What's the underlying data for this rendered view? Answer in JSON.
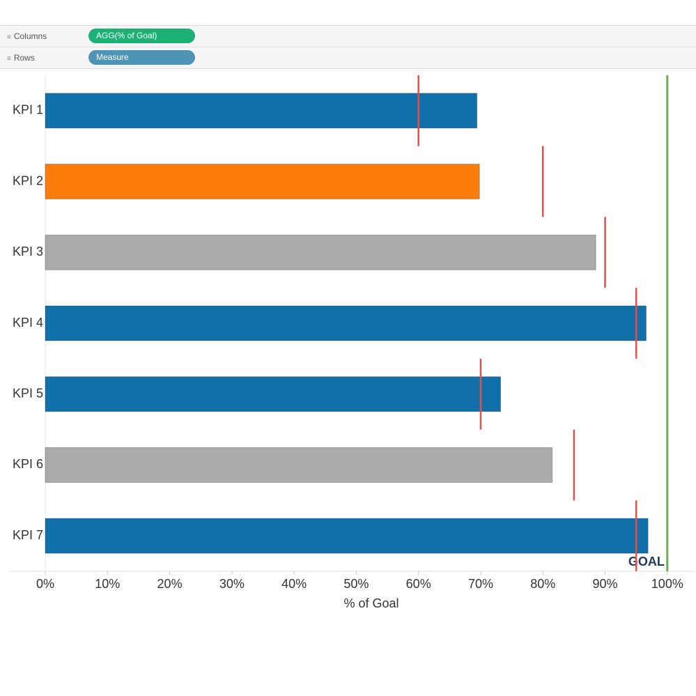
{
  "shelves": [
    {
      "label": "Columns",
      "pill": "AGG(% of Goal)"
    },
    {
      "label": "Rows",
      "pill": "Measure"
    }
  ],
  "chart_data": {
    "type": "bullet",
    "x_label": "% of Goal",
    "categories": [
      "KPI 1",
      "KPI 2",
      "KPI 3",
      "KPI 4",
      "KPI 5",
      "KPI 6",
      "KPI 7"
    ],
    "values": [
      69.4,
      69.8,
      88.5,
      96.6,
      73.2,
      81.5,
      96.9
    ],
    "colors": [
      "#1170aa",
      "#fc7d0b",
      "#ababab",
      "#1170aa",
      "#1170aa",
      "#ababab",
      "#1170aa"
    ],
    "targets": [
      60,
      80,
      90,
      95,
      70,
      85,
      95
    ],
    "target_color": "#d9534f",
    "goal": {
      "value": 100,
      "label": "GOAL",
      "color": "#6ab04c"
    },
    "xlim": [
      0,
      104.5
    ],
    "xticks": [
      {
        "value": 0,
        "label": "0%"
      },
      {
        "value": 10,
        "label": "10%"
      },
      {
        "value": 20,
        "label": "20%"
      },
      {
        "value": 30,
        "label": "30%"
      },
      {
        "value": 40,
        "label": "40%"
      },
      {
        "value": 50,
        "label": "50%"
      },
      {
        "value": 60,
        "label": "60%"
      },
      {
        "value": 70,
        "label": "70%"
      },
      {
        "value": 80,
        "label": "80%"
      },
      {
        "value": 90,
        "label": "90%"
      },
      {
        "value": 100,
        "label": "100%"
      }
    ]
  }
}
